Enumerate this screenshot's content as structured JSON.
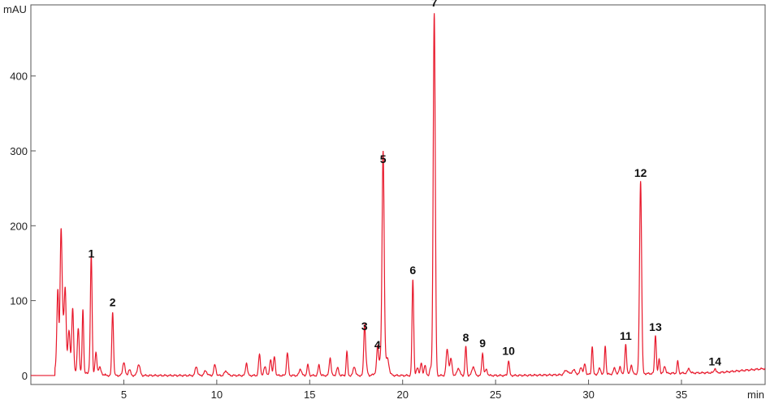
{
  "chart_data": {
    "type": "line",
    "y_unit_label": "mAU",
    "x_unit_label": "min",
    "xlim": [
      0,
      39.5
    ],
    "ylim": [
      -12,
      495
    ],
    "x_ticks": [
      5,
      10,
      15,
      20,
      25,
      30,
      35
    ],
    "y_ticks": [
      0,
      100,
      200,
      300,
      400
    ],
    "grid": false,
    "line_color": "#e8192c",
    "baseline_start": 1.3,
    "noise_peaks": [
      [
        1.45,
        105,
        0.05
      ],
      [
        1.62,
        165,
        0.05
      ],
      [
        1.85,
        100,
        0.05
      ],
      [
        1.72,
        60,
        0.07
      ],
      [
        2.05,
        55,
        0.06
      ],
      [
        2.25,
        85,
        0.05
      ],
      [
        2.55,
        60,
        0.05
      ],
      [
        2.8,
        85,
        0.04
      ],
      [
        3.2,
        12,
        0.06
      ],
      [
        3.5,
        28,
        0.05
      ],
      [
        3.7,
        10,
        0.06
      ],
      [
        5.0,
        18,
        0.06
      ],
      [
        5.3,
        8,
        0.06
      ],
      [
        5.8,
        15,
        0.07
      ],
      [
        8.9,
        12,
        0.06
      ],
      [
        9.4,
        6,
        0.08
      ],
      [
        9.9,
        14,
        0.06
      ],
      [
        10.5,
        6,
        0.08
      ],
      [
        11.6,
        17,
        0.05
      ],
      [
        12.3,
        28,
        0.05
      ],
      [
        12.6,
        12,
        0.06
      ],
      [
        12.9,
        22,
        0.05
      ],
      [
        13.1,
        25,
        0.05
      ],
      [
        13.8,
        30,
        0.05
      ],
      [
        14.5,
        9,
        0.06
      ],
      [
        14.9,
        14,
        0.05
      ],
      [
        15.5,
        14,
        0.05
      ],
      [
        16.1,
        24,
        0.05
      ],
      [
        16.5,
        10,
        0.06
      ],
      [
        17.0,
        32,
        0.04
      ],
      [
        17.4,
        12,
        0.06
      ],
      [
        18.0,
        20,
        0.07
      ],
      [
        18.9,
        25,
        0.2
      ],
      [
        19.2,
        14,
        0.07
      ],
      [
        20.8,
        10,
        0.06
      ],
      [
        21.0,
        16,
        0.05
      ],
      [
        21.2,
        14,
        0.05
      ],
      [
        21.5,
        10,
        0.05
      ],
      [
        22.4,
        35,
        0.06
      ],
      [
        22.6,
        22,
        0.06
      ],
      [
        23.0,
        10,
        0.07
      ],
      [
        23.8,
        12,
        0.07
      ],
      [
        24.5,
        8,
        0.06
      ],
      [
        28.8,
        6,
        0.1
      ],
      [
        29.2,
        6,
        0.1
      ],
      [
        29.6,
        10,
        0.06
      ],
      [
        29.8,
        14,
        0.05
      ],
      [
        30.2,
        38,
        0.04
      ],
      [
        30.6,
        8,
        0.06
      ],
      [
        30.9,
        38,
        0.04
      ],
      [
        31.4,
        8,
        0.06
      ],
      [
        31.7,
        10,
        0.05
      ],
      [
        32.3,
        12,
        0.05
      ],
      [
        33.8,
        20,
        0.04
      ],
      [
        34.1,
        10,
        0.05
      ],
      [
        34.8,
        16,
        0.04
      ],
      [
        35.4,
        6,
        0.06
      ]
    ],
    "peaks": [
      {
        "label": "1",
        "x": 3.25,
        "y": 150
      },
      {
        "label": "2",
        "x": 4.4,
        "y": 85
      },
      {
        "label": "3",
        "x": 17.95,
        "y": 53
      },
      {
        "label": "4",
        "x": 18.65,
        "y": 28
      },
      {
        "label": "5",
        "x": 18.95,
        "y": 276
      },
      {
        "label": "6",
        "x": 20.55,
        "y": 128
      },
      {
        "label": "7",
        "x": 21.7,
        "y": 485
      },
      {
        "label": "8",
        "x": 23.4,
        "y": 38
      },
      {
        "label": "9",
        "x": 24.3,
        "y": 30
      },
      {
        "label": "10",
        "x": 25.7,
        "y": 20
      },
      {
        "label": "11",
        "x": 32.0,
        "y": 40
      },
      {
        "label": "12",
        "x": 32.8,
        "y": 258
      },
      {
        "label": "13",
        "x": 33.6,
        "y": 52
      },
      {
        "label": "14",
        "x": 36.8,
        "y": 6
      }
    ]
  }
}
